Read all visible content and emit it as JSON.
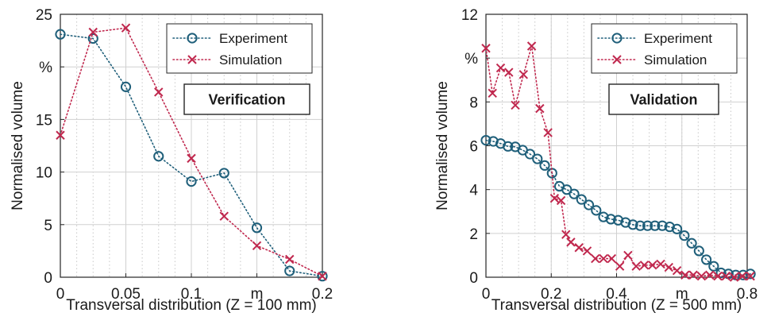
{
  "chart_data": [
    {
      "type": "line",
      "xlabel": "Transversal distribution (Z = 100 mm)",
      "ylabel": "Normalised volume",
      "x_unit_label": "m",
      "y_unit_label": "%",
      "annotation": "Verification",
      "xlim": [
        0,
        0.2
      ],
      "ylim": [
        0,
        25
      ],
      "x_ticks": [
        {
          "value": 0,
          "label": "0"
        },
        {
          "value": 0.05,
          "label": "0.05"
        },
        {
          "value": 0.1,
          "label": "0.1"
        },
        {
          "value": 0.15,
          "label": "m"
        },
        {
          "value": 0.2,
          "label": "0.2"
        }
      ],
      "y_ticks": [
        {
          "value": 0,
          "label": "0"
        },
        {
          "value": 5,
          "label": "5"
        },
        {
          "value": 10,
          "label": "10"
        },
        {
          "value": 15,
          "label": "15"
        },
        {
          "value": 20,
          "label": "%"
        },
        {
          "value": 25,
          "label": "25"
        }
      ],
      "grid": true,
      "legend_position": "top-right",
      "series": [
        {
          "name": "Experiment",
          "color": "#1f5f7a",
          "marker": "circle",
          "x": [
            0,
            0.025,
            0.05,
            0.075,
            0.1,
            0.125,
            0.15,
            0.175,
            0.2
          ],
          "y": [
            23.1,
            22.7,
            18.1,
            11.5,
            9.1,
            9.9,
            4.7,
            0.6,
            0.1
          ]
        },
        {
          "name": "Simulation",
          "color": "#c0284e",
          "marker": "x",
          "x": [
            0,
            0.025,
            0.05,
            0.075,
            0.1,
            0.125,
            0.15,
            0.175,
            0.2
          ],
          "y": [
            13.5,
            23.3,
            23.7,
            17.6,
            11.3,
            5.8,
            3.0,
            1.7,
            0.1
          ]
        }
      ]
    },
    {
      "type": "line",
      "xlabel": "Transversal distribution (Z = 500 mm)",
      "ylabel": "Normalised volume",
      "x_unit_label": "m",
      "y_unit_label": "%",
      "annotation": "Validation",
      "xlim": [
        0,
        0.8
      ],
      "ylim": [
        0,
        12
      ],
      "x_ticks": [
        {
          "value": 0,
          "label": "0"
        },
        {
          "value": 0.2,
          "label": "0.2"
        },
        {
          "value": 0.4,
          "label": "0.4"
        },
        {
          "value": 0.6,
          "label": "m"
        },
        {
          "value": 0.8,
          "label": "0.8"
        }
      ],
      "y_ticks": [
        {
          "value": 0,
          "label": "0"
        },
        {
          "value": 2,
          "label": "2"
        },
        {
          "value": 4,
          "label": "4"
        },
        {
          "value": 6,
          "label": "6"
        },
        {
          "value": 8,
          "label": "8"
        },
        {
          "value": 10,
          "label": "%"
        },
        {
          "value": 12,
          "label": "12"
        }
      ],
      "grid": true,
      "legend_position": "top-right",
      "series": [
        {
          "name": "Experiment",
          "color": "#1f5f7a",
          "marker": "circle",
          "x": [
            0,
            0.0225,
            0.045,
            0.0675,
            0.09,
            0.1125,
            0.135,
            0.1575,
            0.18,
            0.2025,
            0.225,
            0.2475,
            0.27,
            0.2925,
            0.315,
            0.3375,
            0.36,
            0.3825,
            0.405,
            0.4275,
            0.45,
            0.4725,
            0.495,
            0.5175,
            0.54,
            0.5625,
            0.585,
            0.6075,
            0.63,
            0.6525,
            0.675,
            0.6975,
            0.72,
            0.7425,
            0.765,
            0.7875,
            0.81
          ],
          "y": [
            6.25,
            6.2,
            6.1,
            5.97,
            5.95,
            5.8,
            5.62,
            5.4,
            5.1,
            4.75,
            4.15,
            4.0,
            3.8,
            3.55,
            3.3,
            3.05,
            2.75,
            2.65,
            2.6,
            2.5,
            2.4,
            2.35,
            2.35,
            2.35,
            2.35,
            2.3,
            2.2,
            1.9,
            1.55,
            1.2,
            0.8,
            0.5,
            0.2,
            0.15,
            0.1,
            0.1,
            0.15
          ]
        },
        {
          "name": "Simulation",
          "color": "#c0284e",
          "marker": "x",
          "x": [
            0,
            0.02,
            0.045,
            0.07,
            0.09,
            0.115,
            0.14,
            0.165,
            0.19,
            0.21,
            0.23,
            0.245,
            0.26,
            0.285,
            0.31,
            0.335,
            0.36,
            0.385,
            0.41,
            0.435,
            0.46,
            0.485,
            0.51,
            0.535,
            0.56,
            0.585,
            0.61,
            0.635,
            0.66,
            0.685,
            0.71,
            0.735,
            0.76,
            0.785,
            0.81
          ],
          "y": [
            10.45,
            8.4,
            9.55,
            9.35,
            7.85,
            9.25,
            10.55,
            7.7,
            6.6,
            3.6,
            3.5,
            1.95,
            1.6,
            1.35,
            1.2,
            0.85,
            0.85,
            0.85,
            0.5,
            1.0,
            0.5,
            0.55,
            0.55,
            0.6,
            0.45,
            0.3,
            0.1,
            0.1,
            0.05,
            0.1,
            0.05,
            0.05,
            0.0,
            0.05,
            0.05
          ]
        }
      ]
    }
  ]
}
